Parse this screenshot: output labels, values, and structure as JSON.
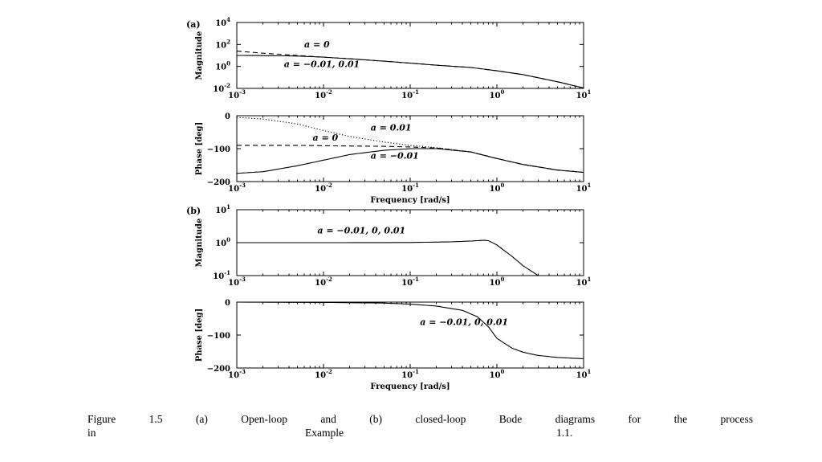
{
  "caption": {
    "line1": "Figure 1.5 (a) Open-loop and (b) closed-loop Bode diagrams for the process",
    "l2_a": "in",
    "l2_b": "Example",
    "l2_c": "1.1."
  },
  "panel_labels": {
    "a": "(a)",
    "b": "(b)"
  },
  "chart_data": [
    {
      "type": "line",
      "panel": "(a)",
      "ylabel": "Magnitude",
      "xlabel": "",
      "xscale": "log",
      "yscale": "log",
      "xlim": [
        0.001,
        10
      ],
      "ylim": [
        0.01,
        10000
      ],
      "x_ticks": [
        "10^-3",
        "10^-2",
        "10^-1",
        "10^0",
        "10^1"
      ],
      "y_ticks": [
        "10^-2",
        "10^0",
        "10^2",
        "10^4"
      ],
      "series": [
        {
          "name": "a = 0",
          "style": "dashed",
          "x": [
            0.001,
            0.002,
            0.005,
            0.01,
            0.02,
            0.05,
            0.1,
            0.2,
            0.5,
            1,
            2,
            5,
            10
          ],
          "y": [
            25,
            16,
            10,
            7,
            5,
            3,
            2,
            1.3,
            0.8,
            0.4,
            0.18,
            0.04,
            0.011
          ]
        },
        {
          "name": "a = -0.01, 0.01",
          "style": "solid",
          "x": [
            0.001,
            0.002,
            0.005,
            0.01,
            0.02,
            0.05,
            0.1,
            0.2,
            0.5,
            1,
            2,
            5,
            10
          ],
          "y": [
            10,
            9.7,
            8.8,
            7,
            5,
            3,
            2,
            1.3,
            0.8,
            0.4,
            0.18,
            0.04,
            0.011
          ]
        }
      ],
      "annotations": [
        {
          "text": "a = 0",
          "x": 0.006,
          "y": 55
        },
        {
          "text": "a = −0.01, 0.01",
          "x": 0.0035,
          "y": 0.9
        }
      ]
    },
    {
      "type": "line",
      "panel": "(a)",
      "ylabel": "Phase [deg]",
      "xlabel": "Frequency [rad/s]",
      "xscale": "log",
      "xlim": [
        0.001,
        10
      ],
      "ylim": [
        -200,
        0
      ],
      "x_ticks": [
        "10^-3",
        "10^-2",
        "10^-1",
        "10^0",
        "10^1"
      ],
      "y_ticks": [
        "0",
        "−100",
        "−200"
      ],
      "series": [
        {
          "name": "a = 0.01",
          "style": "dotted",
          "x": [
            0.001,
            0.002,
            0.005,
            0.01,
            0.02,
            0.05,
            0.1,
            0.2,
            0.5,
            1,
            2,
            5,
            10
          ],
          "y": [
            -5,
            -10,
            -25,
            -45,
            -63,
            -80,
            -90,
            -97,
            -110,
            -130,
            -148,
            -165,
            -172
          ]
        },
        {
          "name": "a = 0",
          "style": "dashed",
          "x": [
            0.001,
            0.002,
            0.005,
            0.01,
            0.02,
            0.05,
            0.1,
            0.2,
            0.5,
            1,
            2,
            5,
            10
          ],
          "y": [
            -90,
            -90,
            -90,
            -91,
            -92,
            -93,
            -95,
            -98,
            -110,
            -130,
            -148,
            -165,
            -172
          ]
        },
        {
          "name": "a = -0.01",
          "style": "solid",
          "x": [
            0.001,
            0.002,
            0.005,
            0.01,
            0.02,
            0.05,
            0.1,
            0.2,
            0.5,
            1,
            2,
            5,
            10
          ],
          "y": [
            -175,
            -170,
            -152,
            -135,
            -118,
            -105,
            -100,
            -100,
            -110,
            -130,
            -148,
            -165,
            -172
          ]
        }
      ],
      "annotations": [
        {
          "text": "a = 0.01",
          "x": 0.035,
          "y": -45
        },
        {
          "text": "a = 0",
          "x": 0.0075,
          "y": -75
        },
        {
          "text": "a = −0.01",
          "x": 0.035,
          "y": -130
        }
      ]
    },
    {
      "type": "line",
      "panel": "(b)",
      "ylabel": "Magnitude",
      "xlabel": "",
      "xscale": "log",
      "yscale": "log",
      "xlim": [
        0.001,
        10
      ],
      "ylim": [
        0.1,
        10
      ],
      "x_ticks": [
        "10^-3",
        "10^-2",
        "10^-1",
        "10^0",
        "10^1"
      ],
      "y_ticks": [
        "10^-1",
        "10^0",
        "10^1"
      ],
      "series": [
        {
          "name": "a = -0.01, 0, 0.01",
          "style": "solid",
          "x": [
            0.001,
            0.01,
            0.1,
            0.3,
            0.5,
            0.7,
            0.8,
            1,
            1.5,
            2,
            3
          ],
          "y": [
            1,
            1,
            1.01,
            1.06,
            1.12,
            1.18,
            1.15,
            0.85,
            0.38,
            0.2,
            0.1
          ]
        }
      ],
      "annotations": [
        {
          "text": "a = −0.01, 0, 0.01",
          "x": 0.0085,
          "y": 1.9
        }
      ]
    },
    {
      "type": "line",
      "panel": "(b)",
      "ylabel": "Phase [deg]",
      "xlabel": "Frequency [rad/s]",
      "xscale": "log",
      "xlim": [
        0.001,
        10
      ],
      "ylim": [
        -200,
        0
      ],
      "x_ticks": [
        "10^-3",
        "10^-2",
        "10^-1",
        "10^0",
        "10^1"
      ],
      "y_ticks": [
        "0",
        "−100",
        "−200"
      ],
      "series": [
        {
          "name": "a = -0.01, 0, 0.01",
          "style": "solid",
          "x": [
            0.001,
            0.01,
            0.05,
            0.1,
            0.2,
            0.4,
            0.6,
            0.8,
            1,
            1.5,
            2,
            3,
            5,
            10
          ],
          "y": [
            0,
            -1,
            -3,
            -6,
            -12,
            -25,
            -45,
            -75,
            -110,
            -140,
            -152,
            -162,
            -168,
            -172
          ]
        }
      ],
      "annotations": [
        {
          "text": "a = −0.01, 0, 0.01",
          "x": 0.13,
          "y": -70
        }
      ]
    }
  ]
}
